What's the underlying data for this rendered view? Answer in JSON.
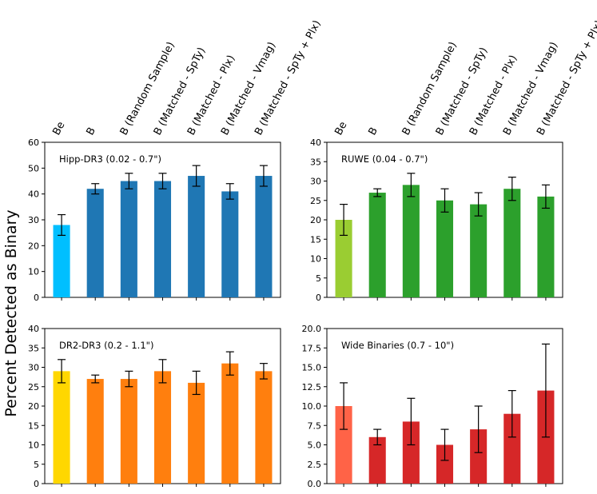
{
  "figure": {
    "ylabel": "Percent Detected as Binary",
    "categories": [
      "Be",
      "B",
      "B (Random Sample)",
      "B (Matched - SpTy)",
      "B (Matched - Plx)",
      "B (Matched - Vmag)",
      "B (Matched - SpTy + Plx)"
    ]
  },
  "chart_data": [
    {
      "type": "bar",
      "title": "Hipp-DR3 (0.02 - 0.7\")",
      "categories": [
        "Be",
        "B",
        "B (Random Sample)",
        "B (Matched - SpTy)",
        "B (Matched - Plx)",
        "B (Matched - Vmag)",
        "B (Matched - SpTy + Plx)"
      ],
      "values": [
        28,
        42,
        45,
        45,
        47,
        41,
        47
      ],
      "errors": [
        4,
        2,
        3,
        3,
        4,
        3,
        4
      ],
      "colors": [
        "#00bfff",
        "#1f77b4",
        "#1f77b4",
        "#1f77b4",
        "#1f77b4",
        "#1f77b4",
        "#1f77b4"
      ],
      "ylim": [
        0,
        60
      ],
      "yticks": [
        0,
        10,
        20,
        30,
        40,
        50,
        60
      ],
      "ytick_labels": [
        "0",
        "10",
        "20",
        "30",
        "40",
        "50",
        "60"
      ],
      "show_xlabels": true
    },
    {
      "type": "bar",
      "title": "RUWE (0.04 - 0.7\")",
      "categories": [
        "Be",
        "B",
        "B (Random Sample)",
        "B (Matched - SpTy)",
        "B (Matched - Plx)",
        "B (Matched - Vmag)",
        "B (Matched - SpTy + Plx)"
      ],
      "values": [
        20,
        27,
        29,
        25,
        24,
        28,
        26
      ],
      "errors": [
        4,
        1,
        3,
        3,
        3,
        3,
        3
      ],
      "colors": [
        "#9acd32",
        "#2ca02c",
        "#2ca02c",
        "#2ca02c",
        "#2ca02c",
        "#2ca02c",
        "#2ca02c"
      ],
      "ylim": [
        0,
        40
      ],
      "yticks": [
        0,
        5,
        10,
        15,
        20,
        25,
        30,
        35,
        40
      ],
      "ytick_labels": [
        "0",
        "5",
        "10",
        "15",
        "20",
        "25",
        "30",
        "35",
        "40"
      ],
      "show_xlabels": true
    },
    {
      "type": "bar",
      "title": "DR2-DR3 (0.2 - 1.1\")",
      "categories": [
        "Be",
        "B",
        "B (Random Sample)",
        "B (Matched - SpTy)",
        "B (Matched - Plx)",
        "B (Matched - Vmag)",
        "B (Matched - SpTy + Plx)"
      ],
      "values": [
        29,
        27,
        27,
        29,
        26,
        31,
        29
      ],
      "errors": [
        3,
        1,
        2,
        3,
        3,
        3,
        2
      ],
      "colors": [
        "#ffd700",
        "#ff7f0e",
        "#ff7f0e",
        "#ff7f0e",
        "#ff7f0e",
        "#ff7f0e",
        "#ff7f0e"
      ],
      "ylim": [
        0,
        40
      ],
      "yticks": [
        0,
        5,
        10,
        15,
        20,
        25,
        30,
        35,
        40
      ],
      "ytick_labels": [
        "0",
        "5",
        "10",
        "15",
        "20",
        "25",
        "30",
        "35",
        "40"
      ],
      "show_xlabels": false
    },
    {
      "type": "bar",
      "title": "Wide Binaries (0.7 - 10\")",
      "categories": [
        "Be",
        "B",
        "B (Random Sample)",
        "B (Matched - SpTy)",
        "B (Matched - Plx)",
        "B (Matched - Vmag)",
        "B (Matched - SpTy + Plx)"
      ],
      "values": [
        10,
        6,
        8,
        5,
        7,
        9,
        12
      ],
      "errors": [
        3,
        1,
        3,
        2,
        3,
        3,
        6
      ],
      "colors": [
        "#ff6347",
        "#d62728",
        "#d62728",
        "#d62728",
        "#d62728",
        "#d62728",
        "#d62728"
      ],
      "ylim": [
        0,
        20
      ],
      "yticks": [
        0,
        2.5,
        5,
        7.5,
        10,
        12.5,
        15,
        17.5,
        20
      ],
      "ytick_labels": [
        "0.0",
        "2.5",
        "5.0",
        "7.5",
        "10.0",
        "12.5",
        "15.0",
        "17.5",
        "20.0"
      ],
      "show_xlabels": false
    }
  ]
}
